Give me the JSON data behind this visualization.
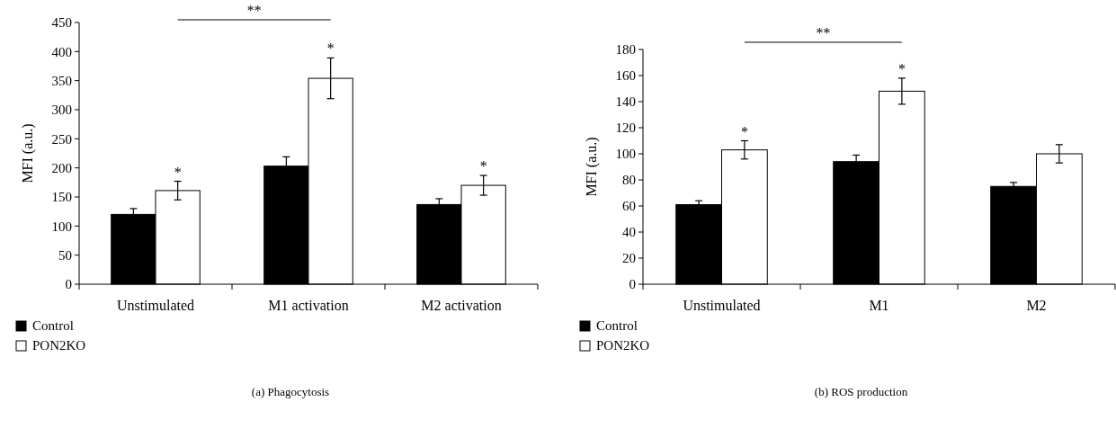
{
  "chart_data": [
    {
      "type": "bar",
      "title": "(a)  Phagocytosis",
      "ylabel": "MFI (a.u.)",
      "categories": [
        "Unstimulated",
        "M1 activation",
        "M2 activation"
      ],
      "series": [
        {
          "name": "Control",
          "color": "#000000",
          "values": [
            120,
            203,
            137
          ],
          "errors": [
            10,
            16,
            10
          ]
        },
        {
          "name": "PON2KO",
          "color": "#ffffff",
          "values": [
            161,
            354,
            170
          ],
          "errors": [
            16,
            35,
            17
          ]
        }
      ],
      "ylim": [
        0,
        450
      ],
      "yticks": [
        0,
        50,
        100,
        150,
        200,
        250,
        300,
        350,
        400,
        450
      ],
      "legend": "bottom left",
      "grid": false,
      "annotations": [
        "**",
        "*",
        "*",
        "*"
      ]
    },
    {
      "type": "bar",
      "title": "(b) ROS production",
      "ylabel": "MFI (a.u.)",
      "categories": [
        "Unstimulated",
        "M1",
        "M2"
      ],
      "series": [
        {
          "name": "Control",
          "color": "#000000",
          "values": [
            61,
            94,
            75
          ],
          "errors": [
            3,
            5,
            3
          ]
        },
        {
          "name": "PON2KO",
          "color": "#ffffff",
          "values": [
            103,
            148,
            100
          ],
          "errors": [
            7,
            10,
            7
          ]
        }
      ],
      "ylim": [
        0,
        180
      ],
      "yticks": [
        0,
        20,
        40,
        60,
        80,
        100,
        120,
        140,
        160,
        180
      ],
      "legend": "bottom left",
      "grid": false,
      "annotations": [
        "**",
        "*",
        "*"
      ]
    }
  ]
}
